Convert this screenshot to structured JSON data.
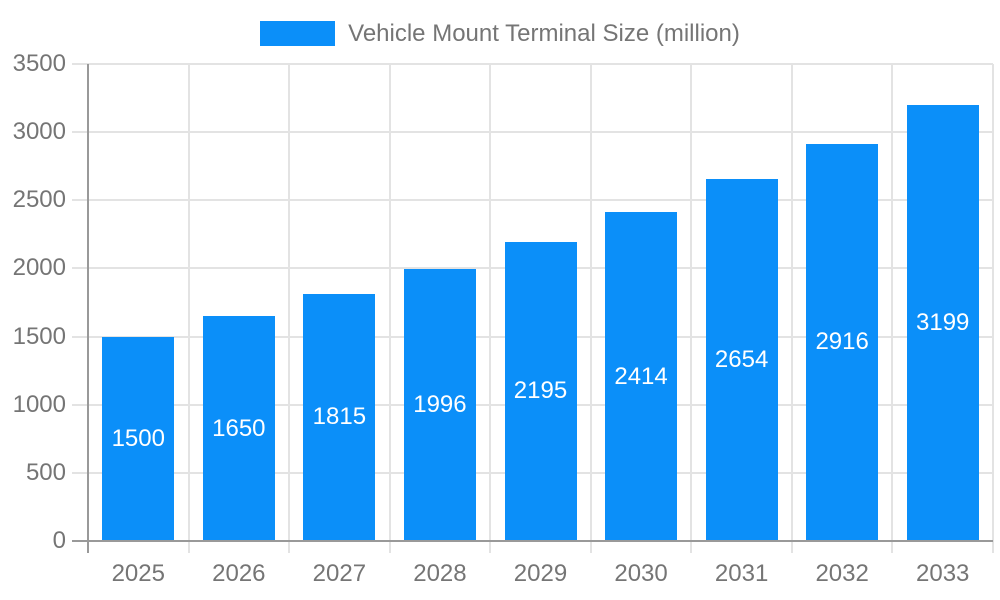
{
  "legend": {
    "label": "Vehicle Mount Terminal Size (million)",
    "swatch_color": "#0b8ff9"
  },
  "chart_data": {
    "type": "bar",
    "title": "",
    "categories": [
      "2025",
      "2026",
      "2027",
      "2028",
      "2029",
      "2030",
      "2031",
      "2032",
      "2033"
    ],
    "series": [
      {
        "name": "Vehicle Mount Terminal Size (million)",
        "values": [
          1500,
          1650,
          1815,
          1996,
          2195,
          2414,
          2654,
          2916,
          3199
        ],
        "color": "#0b8ff9"
      }
    ],
    "xlabel": "",
    "ylabel": "",
    "ylim": [
      0,
      3500
    ],
    "ytick_step": 500,
    "yticks": [
      0,
      500,
      1000,
      1500,
      2000,
      2500,
      3000,
      3500
    ],
    "grid": true,
    "legend_position": "top",
    "bar_labels_visible": true,
    "bar_label_position": "center",
    "colors": {
      "bar": "#0b8ff9",
      "bar_label": "#ffffff",
      "axis_text": "#757575",
      "grid_line": "#e3e3e3",
      "axis_line": "#999999",
      "background": "#ffffff"
    }
  }
}
